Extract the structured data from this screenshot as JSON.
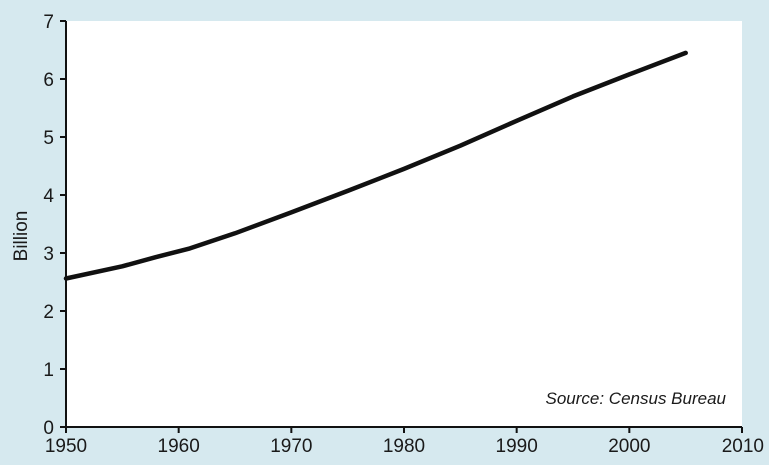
{
  "chart_data": {
    "type": "line",
    "xlabel": "",
    "ylabel": "Billion",
    "xlim": [
      1950,
      2010
    ],
    "ylim": [
      0,
      7
    ],
    "xticks": [
      1950,
      1960,
      1970,
      1980,
      1990,
      2000,
      2010
    ],
    "yticks": [
      0,
      1,
      2,
      3,
      4,
      5,
      6,
      7
    ],
    "grid": false,
    "annotation": "Source: Census Bureau",
    "colors": {
      "background": "#d6e9ef",
      "plot_area": "#ffffff",
      "line": "#111111"
    },
    "series": [
      {
        "x": [
          1950,
          1955,
          1958,
          1961,
          1965,
          1970,
          1975,
          1980,
          1985,
          1990,
          1995,
          2000,
          2005
        ],
        "values": [
          2.56,
          2.77,
          2.93,
          3.08,
          3.34,
          3.7,
          4.07,
          4.45,
          4.85,
          5.28,
          5.7,
          6.08,
          6.45
        ]
      }
    ]
  }
}
